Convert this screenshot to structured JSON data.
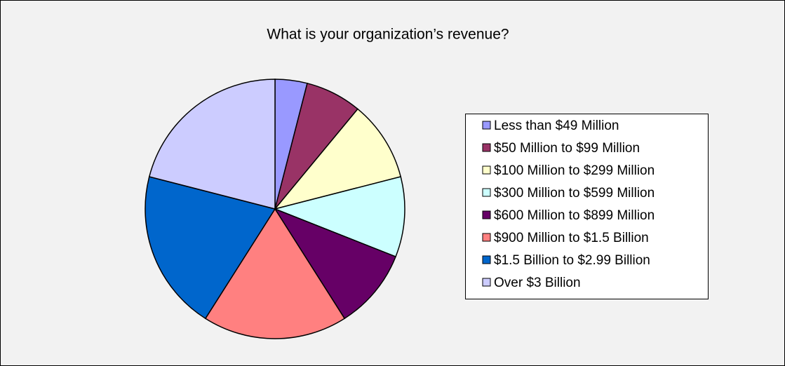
{
  "chart_data": {
    "type": "pie",
    "title": "What is your organization’s revenue?",
    "categories": [
      "Less than $49 Million",
      "$50 Million to $99 Million",
      "$100 Million to $299 Million",
      "$300 Million to $599 Million",
      "$600 Million to $899 Million",
      "$900 Million to $1.5 Billion",
      "$1.5 Billion to $2.99 Billion",
      "Over $3 Billion"
    ],
    "values": [
      4,
      7,
      10,
      10,
      10,
      18,
      20,
      21
    ],
    "colors": [
      "#9999ff",
      "#993366",
      "#ffffcc",
      "#ccffff",
      "#660066",
      "#ff8080",
      "#0066cc",
      "#ccccff"
    ],
    "legend": "right"
  }
}
